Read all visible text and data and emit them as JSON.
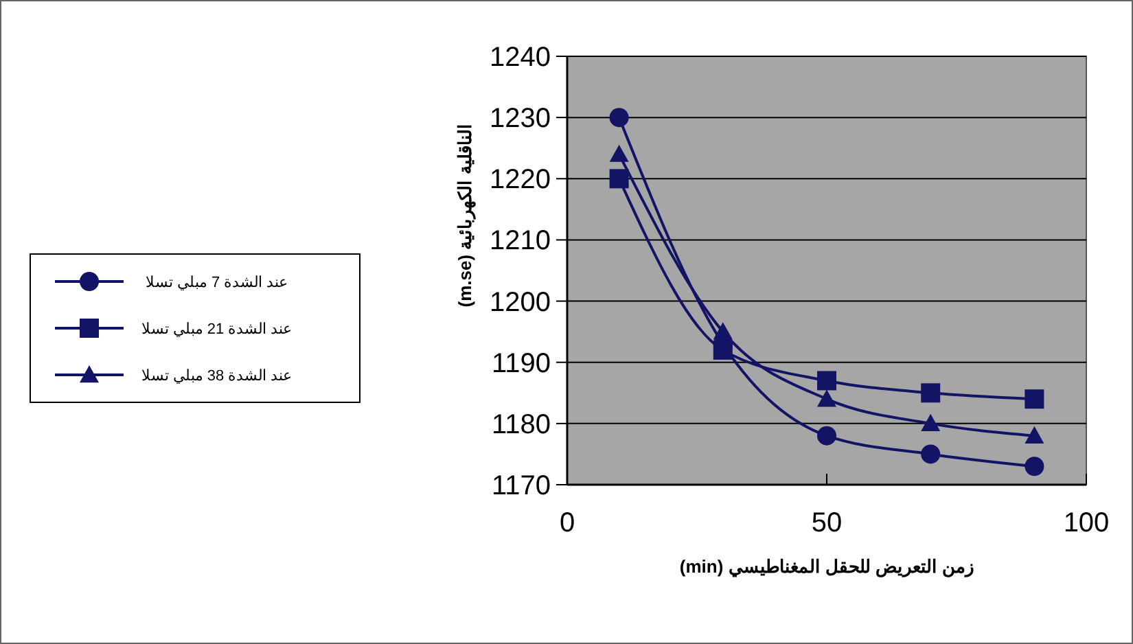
{
  "chart_data": {
    "type": "line",
    "xlabel": "زمن التعريض للحقل المغناطيسي (min)",
    "ylabel": "الناقلية الكهربائية (m.se)",
    "x": [
      10,
      30,
      50,
      70,
      90
    ],
    "xlim": [
      0,
      100
    ],
    "xticks": [
      0,
      50,
      100
    ],
    "ylim": [
      1170,
      1240
    ],
    "yticks": [
      1170,
      1180,
      1190,
      1200,
      1210,
      1220,
      1230,
      1240
    ],
    "grid": "y",
    "legend": "left",
    "line_style": "solid",
    "series": [
      {
        "name": "عند الشدة 7 مبلي تسلا",
        "color": "#141466",
        "marker": "circle",
        "values": [
          1230,
          1193,
          1178,
          1175,
          1173
        ]
      },
      {
        "name": "عند الشدة 21 مبلي تسلا",
        "color": "#141466",
        "marker": "square",
        "values": [
          1220,
          1192,
          1187,
          1185,
          1184
        ]
      },
      {
        "name": "عند الشدة 38 مبلي تسلا",
        "color": "#141466",
        "marker": "triangle",
        "values": [
          1224,
          1195,
          1184,
          1180,
          1178
        ]
      }
    ]
  }
}
